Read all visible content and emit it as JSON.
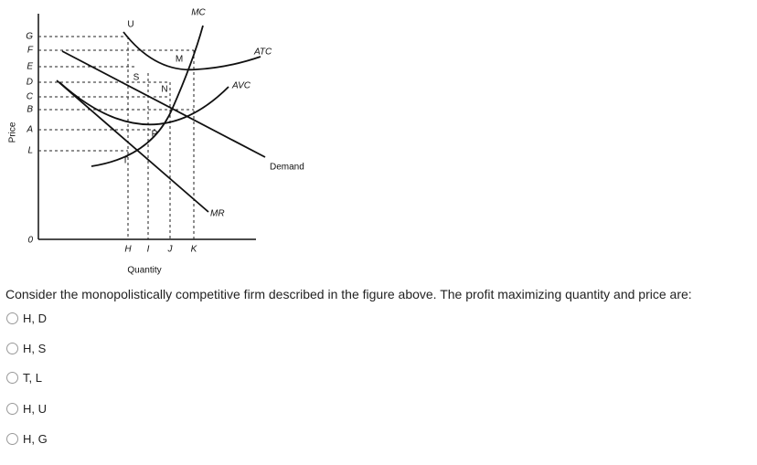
{
  "figure": {
    "y_axis_label": "Price",
    "x_axis_label": "Quantity",
    "price_labels": [
      "G",
      "F",
      "E",
      "D",
      "C",
      "B",
      "A",
      "L",
      "0"
    ],
    "quantity_labels": [
      "H",
      "I",
      "J",
      "K"
    ],
    "curve_labels": {
      "mc": "MC",
      "atc": "ATC",
      "avc": "AVC",
      "demand": "Demand",
      "mr": "MR"
    },
    "point_labels": {
      "u": "U",
      "m": "M",
      "s": "S",
      "n": "N",
      "p": "P",
      "t": "T"
    }
  },
  "question": "Consider the monopolistically competitive firm described in the figure above. The profit maximizing quantity and price are:",
  "options": [
    "H, D",
    "H, S",
    "T, L",
    "H, U",
    "H, G"
  ]
}
